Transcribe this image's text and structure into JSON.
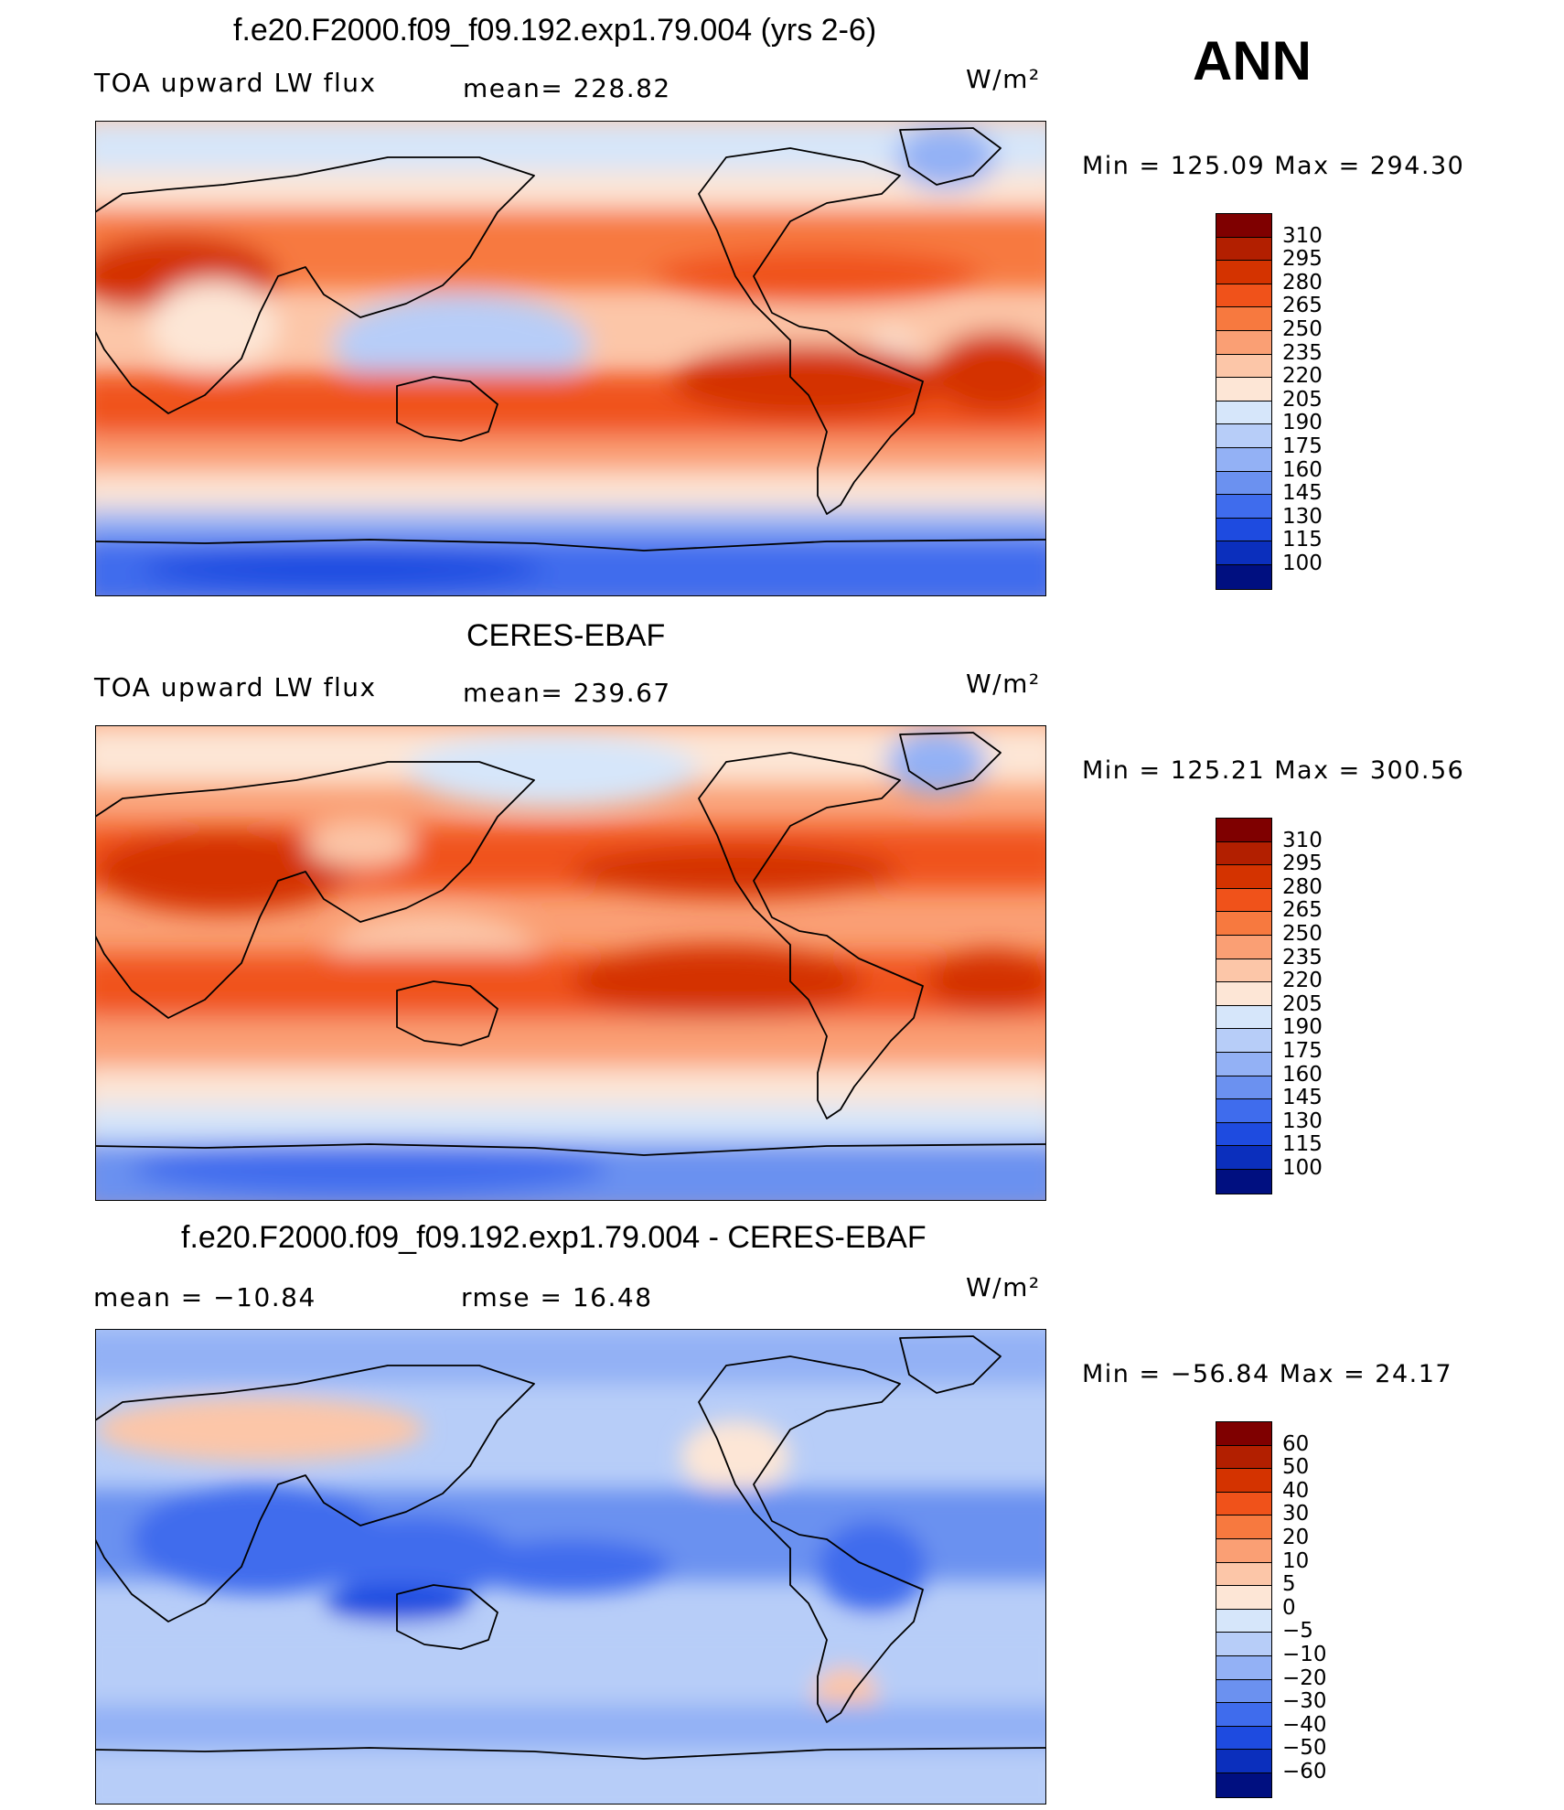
{
  "season": "ANN",
  "panels": [
    {
      "title": "f.e20.F2000.f09_f09.192.exp1.79.004 (yrs 2-6)",
      "left_label": "TOA upward LW flux",
      "mean_label": "mean= 228.82",
      "units": "W/m²",
      "minmax": "Min = 125.09 Max = 294.30",
      "colorbar_ticks": [
        "310",
        "295",
        "280",
        "265",
        "250",
        "235",
        "220",
        "205",
        "190",
        "175",
        "160",
        "145",
        "130",
        "115",
        "100"
      ]
    },
    {
      "title": "CERES-EBAF",
      "left_label": "TOA upward LW flux",
      "mean_label": "mean= 239.67",
      "units": "W/m²",
      "minmax": "Min = 125.21 Max = 300.56",
      "colorbar_ticks": [
        "310",
        "295",
        "280",
        "265",
        "250",
        "235",
        "220",
        "205",
        "190",
        "175",
        "160",
        "145",
        "130",
        "115",
        "100"
      ]
    },
    {
      "title": "f.e20.F2000.f09_f09.192.exp1.79.004 - CERES-EBAF",
      "left_label": "mean = −10.84",
      "mean_label": "rmse = 16.48",
      "units": "W/m²",
      "minmax": "Min = −56.84 Max = 24.17",
      "colorbar_ticks": [
        "60",
        "50",
        "40",
        "30",
        "20",
        "10",
        "5",
        "0",
        "−5",
        "−10",
        "−20",
        "−30",
        "−40",
        "−50",
        "−60"
      ]
    }
  ],
  "colors": {
    "abs_scale": [
      "#7f0000",
      "#b21f00",
      "#d43300",
      "#f0521a",
      "#f7793f",
      "#fa9f74",
      "#fcc6a8",
      "#fde6d6",
      "#d6e6fa",
      "#b7cdf8",
      "#93b1f5",
      "#6b91f0",
      "#3f6ced",
      "#1e4be0",
      "#0b2fbd",
      "#000f80"
    ],
    "diff_scale": [
      "#7f0000",
      "#b21f00",
      "#d43300",
      "#f0521a",
      "#f7793f",
      "#fa9f74",
      "#fcc6a8",
      "#fde6d6",
      "#d6e6fa",
      "#b7cdf8",
      "#93b1f5",
      "#6b91f0",
      "#3f6ced",
      "#1e4be0",
      "#0b2fbd",
      "#000f80"
    ]
  }
}
